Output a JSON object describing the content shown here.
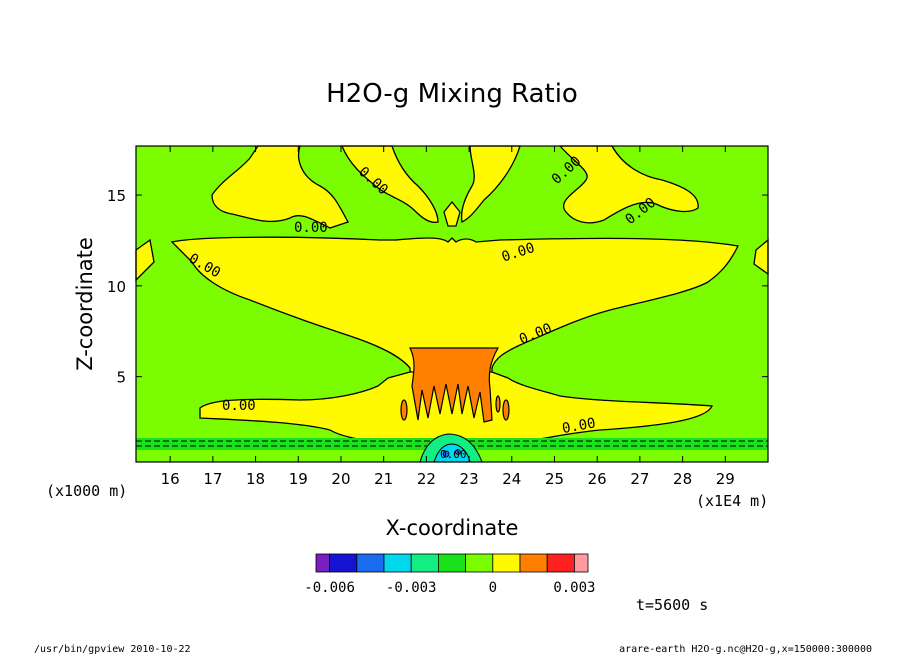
{
  "chart_data": {
    "type": "contour",
    "title": "H2O-g Mixing Ratio",
    "xlabel": "X-coordinate",
    "ylabel": "Z-coordinate",
    "x_unit_label": "(x1E4 m)",
    "y_unit_label": "(x1000 m)",
    "x_range": [
      15.2,
      30.0
    ],
    "y_range": [
      0.3,
      17.7
    ],
    "x_ticks": [
      "16",
      "17",
      "18",
      "19",
      "20",
      "21",
      "22",
      "23",
      "24",
      "25",
      "26",
      "27",
      "28",
      "29"
    ],
    "x_tick_values": [
      16,
      17,
      18,
      19,
      20,
      21,
      22,
      23,
      24,
      25,
      26,
      27,
      28,
      29
    ],
    "y_ticks": [
      "5",
      "10",
      "15"
    ],
    "y_tick_values": [
      5,
      10,
      15
    ],
    "contour_labels": [
      "0.00",
      "0.00",
      "0.00",
      "0.00",
      "0.00",
      "0.00",
      "0.00",
      "0.00",
      "0.00",
      "0.00"
    ],
    "colorbar": {
      "levels": [
        -0.0065,
        -0.006,
        -0.005,
        -0.004,
        -0.003,
        -0.002,
        -0.001,
        0,
        0.001,
        0.002,
        0.003,
        0.0035
      ],
      "colors": [
        "#7a1fbf",
        "#1414d2",
        "#1a6cf0",
        "#00d8ee",
        "#12ee82",
        "#1ae21a",
        "#7cfc00",
        "#fffa00",
        "#ff7f00",
        "#ff2020",
        "#ff9aa0"
      ],
      "tick_labels": [
        "-0.006",
        "-0.003",
        "0",
        "0.003"
      ],
      "tick_values": [
        -0.006,
        -0.003,
        0,
        0.003
      ]
    },
    "time_label": "t=5600 s",
    "footer_left": "/usr/bin/gpview  2010-10-22",
    "footer_right": "arare-earth_H2O-g.nc@H2O-g,x=150000:300000"
  }
}
